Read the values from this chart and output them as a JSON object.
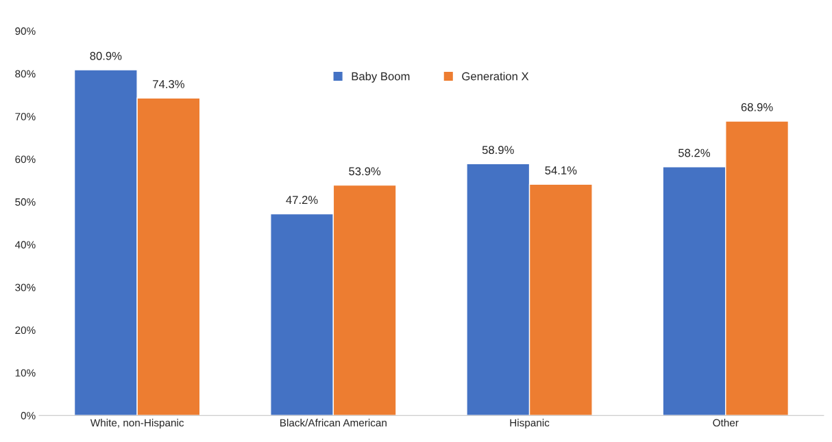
{
  "chart_data": {
    "type": "bar",
    "categories": [
      "White, non-Hispanic",
      "Black/African American",
      "Hispanic",
      "Other"
    ],
    "series": [
      {
        "name": "Baby Boom",
        "color": "#4472c4",
        "values": [
          80.9,
          47.2,
          58.9,
          58.2
        ],
        "value_labels": [
          "80.9%",
          "47.2%",
          "58.9%",
          "58.2%"
        ]
      },
      {
        "name": "Generation X",
        "color": "#ed7d31",
        "values": [
          74.3,
          53.9,
          54.1,
          68.9
        ],
        "value_labels": [
          "74.3%",
          "53.9%",
          "54.1%",
          "68.9%"
        ]
      }
    ],
    "ylim": [
      0,
      90
    ],
    "yticks": [
      {
        "value": 0,
        "label": "0%"
      },
      {
        "value": 10,
        "label": "10%"
      },
      {
        "value": 20,
        "label": "20%"
      },
      {
        "value": 30,
        "label": "30%"
      },
      {
        "value": 40,
        "label": "40%"
      },
      {
        "value": 50,
        "label": "50%"
      },
      {
        "value": 60,
        "label": "60%"
      },
      {
        "value": 70,
        "label": "70%"
      },
      {
        "value": 80,
        "label": "80%"
      },
      {
        "value": 90,
        "label": "90%"
      }
    ],
    "grid": false,
    "legend": "top"
  }
}
